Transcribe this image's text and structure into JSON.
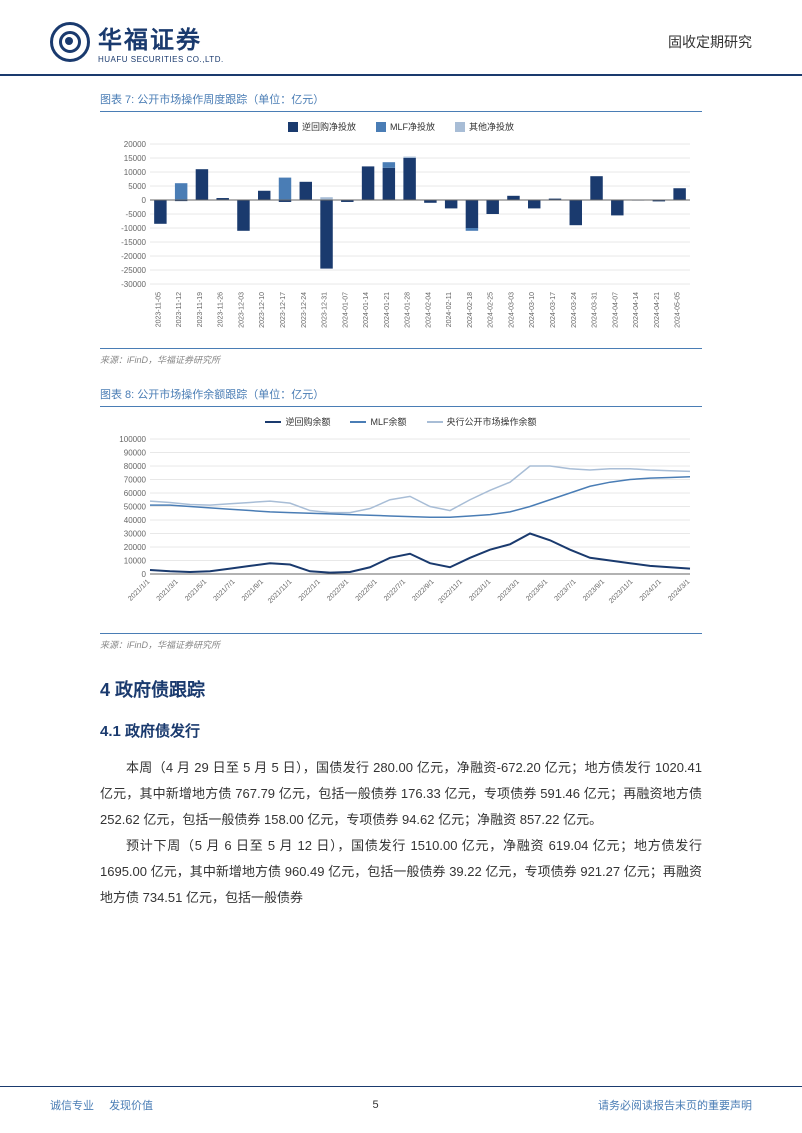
{
  "header": {
    "logo_cn": "华福证券",
    "logo_en": "HUAFU SECURITIES CO.,LTD.",
    "right_text": "固收定期研究"
  },
  "chart7": {
    "title": "图表 7: 公开市场操作周度跟踪（单位：亿元）",
    "source": "来源：iFinD，华福证券研究所",
    "type": "stacked-bar",
    "legend": [
      {
        "label": "逆回购净投放",
        "color": "#1a3a6e"
      },
      {
        "label": "MLF净投放",
        "color": "#4a7db5"
      },
      {
        "label": "其他净投放",
        "color": "#a8bdd6"
      }
    ],
    "ylim": [
      -30000,
      20000
    ],
    "ytick_step": 5000,
    "background_color": "#ffffff",
    "grid_color": "#d0d0d0",
    "axis_color": "#666",
    "label_fontsize": 8,
    "bar_width": 0.6,
    "categories": [
      "2023-11-05",
      "2023-11-12",
      "2023-11-19",
      "2023-11-26",
      "2023-12-03",
      "2023-12-10",
      "2023-12-17",
      "2023-12-24",
      "2023-12-31",
      "2024-01-07",
      "2024-01-14",
      "2024-01-21",
      "2024-01-28",
      "2024-02-04",
      "2024-02-11",
      "2024-02-18",
      "2024-02-25",
      "2024-03-03",
      "2024-03-10",
      "2024-03-17",
      "2024-03-24",
      "2024-03-31",
      "2024-04-07",
      "2024-04-14",
      "2024-04-21",
      "2024-05-05"
    ],
    "series": {
      "reverse_repo": [
        -8500,
        -400,
        11000,
        700,
        -11000,
        3300,
        -700,
        6500,
        -24500,
        -700,
        12000,
        11500,
        15000,
        -1000,
        -3000,
        -10000,
        -5000,
        1500,
        -3000,
        500,
        -9000,
        8500,
        -5500,
        -200,
        -500,
        4200
      ],
      "mlf": [
        0,
        6000,
        0,
        0,
        0,
        0,
        8000,
        0,
        0,
        0,
        0,
        2000,
        0,
        0,
        0,
        -1000,
        0,
        0,
        0,
        0,
        0,
        0,
        0,
        0,
        0,
        0
      ],
      "other": [
        0,
        0,
        0,
        0,
        0,
        0,
        0,
        0,
        1000,
        0,
        0,
        0,
        500,
        0,
        0,
        0,
        0,
        0,
        0,
        0,
        0,
        0,
        0,
        0,
        0,
        0
      ]
    }
  },
  "chart8": {
    "title": "图表 8: 公开市场操作余额跟踪（单位：亿元）",
    "source": "来源：iFinD，华福证券研究所",
    "type": "line",
    "legend": [
      {
        "label": "逆回购余额",
        "color": "#1a3a6e",
        "width": 2
      },
      {
        "label": "MLF余额",
        "color": "#4a7db5",
        "width": 1.5
      },
      {
        "label": "央行公开市场操作余额",
        "color": "#a8bdd6",
        "width": 1.5
      }
    ],
    "ylim": [
      0,
      100000
    ],
    "ytick_step": 10000,
    "background_color": "#ffffff",
    "grid_color": "#d0d0d0",
    "axis_color": "#666",
    "label_fontsize": 8,
    "x_labels": [
      "2021/1/1",
      "2021/3/1",
      "2021/5/1",
      "2021/7/1",
      "2021/9/1",
      "2021/11/1",
      "2022/1/1",
      "2022/3/1",
      "2022/5/1",
      "2022/7/1",
      "2022/9/1",
      "2022/11/1",
      "2023/1/1",
      "2023/3/1",
      "2023/5/1",
      "2023/7/1",
      "2023/9/1",
      "2023/11/1",
      "2024/1/1",
      "2024/3/1"
    ],
    "series": {
      "reverse_repo": [
        3000,
        2000,
        1500,
        2000,
        4000,
        6000,
        8000,
        7000,
        2000,
        1000,
        1500,
        5000,
        12000,
        15000,
        8000,
        5000,
        12000,
        18000,
        22000,
        30000,
        25000,
        18000,
        12000,
        10000,
        8000,
        6000,
        5000,
        4000
      ],
      "mlf": [
        51000,
        51000,
        50000,
        49000,
        48000,
        47000,
        46000,
        45500,
        45000,
        44500,
        44000,
        43500,
        43000,
        42500,
        42000,
        42000,
        43000,
        44000,
        46000,
        50000,
        55000,
        60000,
        65000,
        68000,
        70000,
        71000,
        71500,
        72000
      ],
      "total": [
        54000,
        53000,
        51500,
        51000,
        52000,
        53000,
        54000,
        52500,
        47000,
        45500,
        45500,
        48500,
        55000,
        57500,
        50000,
        47000,
        55000,
        62000,
        68000,
        80000,
        80000,
        78000,
        77000,
        78000,
        78000,
        77000,
        76500,
        76000
      ]
    }
  },
  "section4": {
    "title": "4 政府债跟踪",
    "sub1": {
      "title": "4.1 政府债发行"
    },
    "para1": "本周（4 月 29 日至 5 月 5 日），国债发行 280.00 亿元，净融资-672.20 亿元；地方债发行 1020.41 亿元，其中新增地方债 767.79 亿元，包括一般债券 176.33 亿元，专项债券 591.46 亿元；再融资地方债 252.62 亿元，包括一般债券 158.00 亿元，专项债券 94.62 亿元；净融资 857.22 亿元。",
    "para2": "预计下周（5 月 6 日至 5 月 12 日），国债发行 1510.00 亿元，净融资 619.04 亿元；地方债发行 1695.00 亿元，其中新增地方债 960.49 亿元，包括一般债券 39.22 亿元，专项债券 921.27 亿元；再融资地方债 734.51 亿元，包括一般债券"
  },
  "footer": {
    "left1": "诚信专业",
    "left2": "发现价值",
    "page": "5",
    "right": "请务必阅读报告末页的重要声明"
  }
}
